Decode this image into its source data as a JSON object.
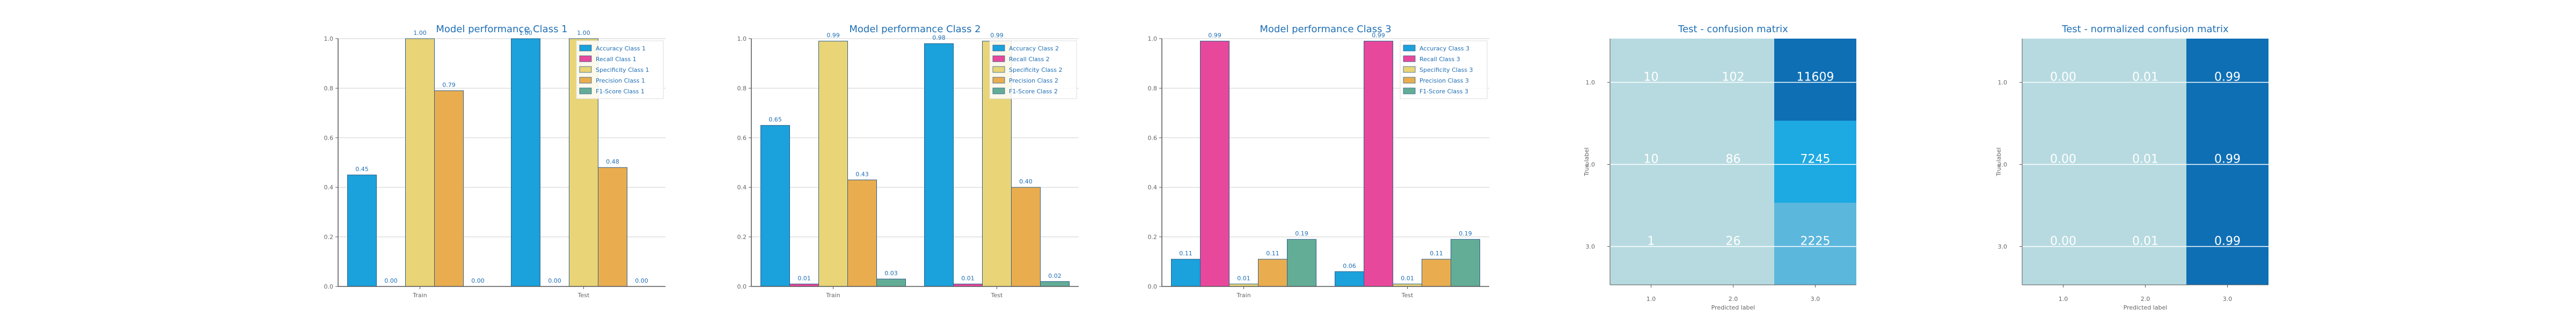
{
  "figure": {
    "background": "#ffffff",
    "axis_color": "#555555",
    "grid_color": "#cfcfcf",
    "title_color": "#1f6fb5",
    "label_color": "#666666",
    "data_label_color": "#1f6fb5"
  },
  "metric_colors": {
    "Accuracy": "#1ba1db",
    "Recall": "#e8489b",
    "Specificity": "#e9d477",
    "Precision": "#e9ad4f",
    "F1-Score": "#63ad97"
  },
  "chart_data": [
    {
      "type": "bar",
      "title": "Model performance Class 1",
      "categories": [
        "Train",
        "Test"
      ],
      "ylim": [
        0,
        1.0
      ],
      "yticks": [
        "0.0",
        "0.2",
        "0.4",
        "0.6",
        "0.8",
        "1.0"
      ],
      "grid": true,
      "legend_position": "top-right",
      "series": [
        {
          "name": "Accuracy Class 1",
          "metric": "Accuracy",
          "values": [
            0.45,
            1.0
          ],
          "labels": [
            "0.45",
            "1.00"
          ]
        },
        {
          "name": "Recall Class 1",
          "metric": "Recall",
          "values": [
            0.0,
            0.0
          ],
          "labels": [
            "0.00",
            "0.00"
          ]
        },
        {
          "name": "Specificity Class 1",
          "metric": "Specificity",
          "values": [
            1.0,
            1.0
          ],
          "labels": [
            "1.00",
            "1.00"
          ]
        },
        {
          "name": "Precision Class 1",
          "metric": "Precision",
          "values": [
            0.79,
            0.48
          ],
          "labels": [
            "0.79",
            "0.48"
          ]
        },
        {
          "name": "F1-Score Class 1",
          "metric": "F1-Score",
          "values": [
            0.0,
            0.0
          ],
          "labels": [
            "0.00",
            "0.00"
          ]
        }
      ]
    },
    {
      "type": "bar",
      "title": "Model performance Class 2",
      "categories": [
        "Train",
        "Test"
      ],
      "ylim": [
        0,
        1.0
      ],
      "yticks": [
        "0.0",
        "0.2",
        "0.4",
        "0.6",
        "0.8",
        "1.0"
      ],
      "grid": true,
      "legend_position": "top-right",
      "series": [
        {
          "name": "Accuracy Class 2",
          "metric": "Accuracy",
          "values": [
            0.65,
            0.98
          ],
          "labels": [
            "0.65",
            "0.98"
          ]
        },
        {
          "name": "Recall Class 2",
          "metric": "Recall",
          "values": [
            0.01,
            0.01
          ],
          "labels": [
            "0.01",
            "0.01"
          ]
        },
        {
          "name": "Specificity Class 2",
          "metric": "Specificity",
          "values": [
            0.99,
            0.99
          ],
          "labels": [
            "0.99",
            "0.99"
          ]
        },
        {
          "name": "Precision Class 2",
          "metric": "Precision",
          "values": [
            0.43,
            0.4
          ],
          "labels": [
            "0.43",
            "0.40"
          ]
        },
        {
          "name": "F1-Score Class 2",
          "metric": "F1-Score",
          "values": [
            0.03,
            0.02
          ],
          "labels": [
            "0.03",
            "0.02"
          ]
        }
      ]
    },
    {
      "type": "bar",
      "title": "Model performance Class 3",
      "categories": [
        "Train",
        "Test"
      ],
      "ylim": [
        0,
        1.0
      ],
      "yticks": [
        "0.0",
        "0.2",
        "0.4",
        "0.6",
        "0.8",
        "1.0"
      ],
      "grid": true,
      "legend_position": "top-right",
      "series": [
        {
          "name": "Accuracy Class 3",
          "metric": "Accuracy",
          "values": [
            0.11,
            0.06
          ],
          "labels": [
            "0.11",
            "0.06"
          ]
        },
        {
          "name": "Recall Class 3",
          "metric": "Recall",
          "values": [
            0.99,
            0.99
          ],
          "labels": [
            "0.99",
            "0.99"
          ]
        },
        {
          "name": "Specificity Class 3",
          "metric": "Specificity",
          "values": [
            0.01,
            0.01
          ],
          "labels": [
            "0.01",
            "0.01"
          ]
        },
        {
          "name": "Precision Class 3",
          "metric": "Precision",
          "values": [
            0.11,
            0.11
          ],
          "labels": [
            "0.11",
            "0.11"
          ]
        },
        {
          "name": "F1-Score Class 3",
          "metric": "F1-Score",
          "values": [
            0.19,
            0.19
          ],
          "labels": [
            "0.19",
            "0.19"
          ]
        }
      ]
    },
    {
      "type": "heatmap",
      "title": "Test - confusion matrix",
      "xlabel": "Predicted label",
      "ylabel": "True label",
      "xticks": [
        "1.0",
        "2.0",
        "3.0"
      ],
      "yticks": [
        "1.0",
        "2.0",
        "3.0"
      ],
      "grid": false,
      "cells": [
        [
          "10",
          "102",
          "11609"
        ],
        [
          "10",
          "86",
          "7245"
        ],
        [
          "1",
          "26",
          "2225"
        ]
      ],
      "cell_colors": [
        [
          "#b7dae0",
          "#b7dae0",
          "#0e6fb5"
        ],
        [
          "#b7dae0",
          "#b7dae0",
          "#1da9e2"
        ],
        [
          "#b7dae0",
          "#b7dae0",
          "#5cb7dd"
        ]
      ]
    },
    {
      "type": "heatmap",
      "title": "Test - normalized confusion matrix",
      "xlabel": "Predicted label",
      "ylabel": "True label",
      "xticks": [
        "1.0",
        "2.0",
        "3.0"
      ],
      "yticks": [
        "1.0",
        "2.0",
        "3.0"
      ],
      "grid": false,
      "cells": [
        [
          "0.00",
          "0.01",
          "0.99"
        ],
        [
          "0.00",
          "0.01",
          "0.99"
        ],
        [
          "0.00",
          "0.01",
          "0.99"
        ]
      ],
      "cell_colors": [
        [
          "#b7dae0",
          "#b7dae0",
          "#0e6fb5"
        ],
        [
          "#b7dae0",
          "#b7dae0",
          "#0e6fb5"
        ],
        [
          "#b7dae0",
          "#b7dae0",
          "#0e6fb5"
        ]
      ]
    }
  ]
}
